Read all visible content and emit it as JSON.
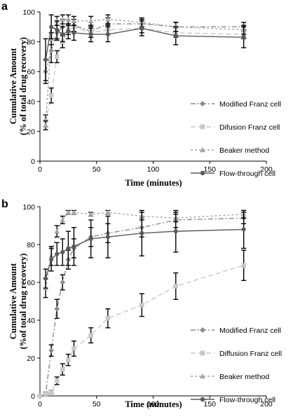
{
  "chart_data": [
    {
      "panel": "a",
      "type": "line",
      "xlabel": "Time (minutes)",
      "ylabel_line1": "Cumulative Amount",
      "ylabel_line2": "(% of total drug recovery)",
      "xlim": [
        0,
        200
      ],
      "ylim": [
        0,
        100
      ],
      "xticks": [
        0,
        50,
        100,
        150,
        200
      ],
      "yticks": [
        0,
        20,
        40,
        60,
        80,
        100
      ],
      "legend_position": "right",
      "series": [
        {
          "name": "Modified Franz cell",
          "color": "#8a8a8a",
          "dash": "7,3,2,3",
          "marker": "diamond",
          "x": [
            5,
            10,
            15,
            20,
            30,
            45,
            60,
            90,
            120,
            180
          ],
          "y": [
            60,
            74,
            86,
            90,
            91,
            87,
            92,
            92,
            90,
            90
          ],
          "err": [
            8,
            8,
            5,
            5,
            4,
            4,
            4,
            3,
            3,
            3
          ]
        },
        {
          "name": "Difusion Franz cell",
          "color": "#c8c8c8",
          "dash": "7,4",
          "marker": "square",
          "x": [
            5,
            10,
            15,
            20,
            25,
            30,
            45,
            60,
            90,
            120,
            180
          ],
          "y": [
            27,
            44,
            70,
            80,
            88,
            90,
            86,
            88,
            89,
            86,
            85
          ],
          "err": [
            4,
            5,
            4,
            4,
            3,
            3,
            3,
            3,
            3,
            3,
            3
          ]
        },
        {
          "name": "Beaker method",
          "color": "#a6a6a6",
          "dash": "3,3",
          "marker": "triangle",
          "x": [
            5,
            10,
            15,
            20,
            25,
            30,
            45,
            60,
            90,
            120,
            180
          ],
          "y": [
            24,
            82,
            94,
            95,
            95,
            94,
            94,
            95,
            93,
            90,
            88
          ],
          "err": [
            3,
            4,
            3,
            3,
            3,
            3,
            3,
            3,
            3,
            3,
            3
          ]
        },
        {
          "name": "Flow-through cell",
          "color": "#595959",
          "dash": "",
          "marker": "circle",
          "x": [
            5,
            10,
            15,
            20,
            25,
            30,
            45,
            60,
            90,
            120,
            180
          ],
          "y": [
            68,
            90,
            88,
            85,
            87,
            86,
            85,
            85,
            89,
            84,
            83
          ],
          "err": [
            14,
            8,
            6,
            5,
            5,
            5,
            5,
            5,
            5,
            6,
            7
          ]
        }
      ]
    },
    {
      "panel": "b",
      "type": "line",
      "xlabel": "Time (minutes)",
      "ylabel_line1": "Cumulative Amount",
      "ylabel_line2": "(%of total drug recovery)",
      "xlim": [
        0,
        200
      ],
      "ylim": [
        0,
        100
      ],
      "xticks": [
        0,
        50,
        100,
        150,
        200
      ],
      "yticks": [
        0,
        20,
        40,
        60,
        80,
        100
      ],
      "legend_position": "right",
      "series": [
        {
          "name": "Modified Franz cell",
          "color": "#8a8a8a",
          "dash": "7,3,2,3",
          "marker": "diamond",
          "x": [
            0,
            5,
            10,
            15,
            20,
            25,
            30,
            45,
            60,
            90,
            120,
            180
          ],
          "y": [
            0,
            1,
            24,
            46,
            60,
            72,
            78,
            84,
            86,
            89,
            93,
            94
          ],
          "err": [
            0,
            1,
            3,
            5,
            4,
            5,
            5,
            5,
            5,
            5,
            4,
            3
          ]
        },
        {
          "name": "Diffusion Franz cell",
          "color": "#c8c8c8",
          "dash": "7,4",
          "marker": "square",
          "x": [
            0,
            5,
            10,
            15,
            20,
            25,
            30,
            45,
            60,
            90,
            120,
            180
          ],
          "y": [
            0,
            1,
            2,
            8,
            14,
            19,
            25,
            32,
            41,
            48,
            58,
            69
          ],
          "err": [
            0,
            1,
            1,
            2,
            3,
            3,
            4,
            4,
            5,
            6,
            7,
            8
          ]
        },
        {
          "name": "Beaker method",
          "color": "#a6a6a6",
          "dash": "3,3",
          "marker": "triangle",
          "x": [
            5,
            10,
            15,
            20,
            25,
            30,
            45,
            60,
            90,
            120,
            180
          ],
          "y": [
            57,
            74,
            87,
            93,
            97,
            97,
            96,
            97,
            95,
            94,
            96
          ],
          "err": [
            5,
            5,
            3,
            2,
            1,
            1,
            1,
            1,
            2,
            2,
            2
          ]
        },
        {
          "name": "Flow-through cell",
          "color": "#595959",
          "dash": "",
          "marker": "circle",
          "x": [
            5,
            10,
            15,
            20,
            25,
            30,
            45,
            60,
            90,
            120,
            180
          ],
          "y": [
            62,
            72,
            75,
            76,
            78,
            79,
            83,
            84,
            86,
            87,
            88
          ],
          "err": [
            5,
            6,
            6,
            7,
            9,
            10,
            10,
            11,
            12,
            11,
            10
          ]
        }
      ]
    }
  ]
}
